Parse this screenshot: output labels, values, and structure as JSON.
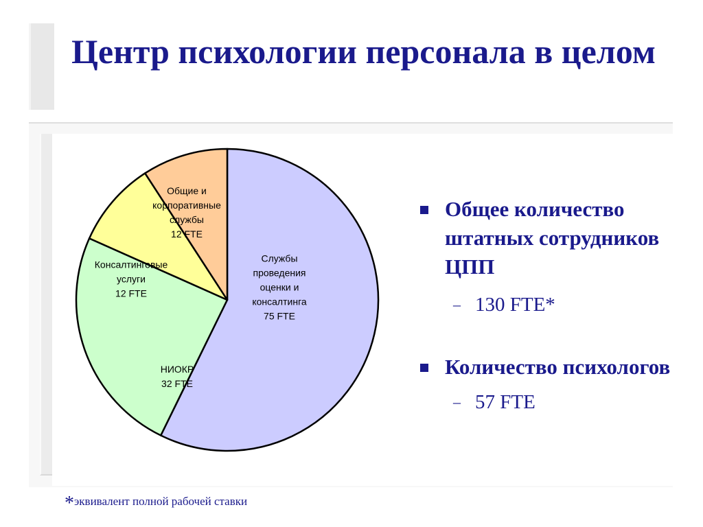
{
  "title": "Центр психологии персонала в целом",
  "chart_data": {
    "type": "pie",
    "slices": [
      {
        "name": "Службы проведения оценки и консалтинга",
        "lines": [
          "Службы",
          "проведения",
          "оценки и",
          "консалтинга",
          "75 FTE"
        ],
        "value": 75,
        "color": "#ccccff"
      },
      {
        "name": "НИОКР",
        "lines": [
          "НИОКР",
          "32 FTE"
        ],
        "value": 32,
        "color": "#ccffcc"
      },
      {
        "name": "Консалтинговые услуги",
        "lines": [
          "Консалтинговые",
          "услуги",
          "12 FTE"
        ],
        "value": 12,
        "color": "#ffff99"
      },
      {
        "name": "Общие и корпоративные службы",
        "lines": [
          "Общие и",
          "корпоративные",
          "службы",
          "12 FTE"
        ],
        "value": 12,
        "color": "#ffcc99"
      }
    ],
    "start_angle_deg": 0,
    "direction": "clockwise"
  },
  "bullets": [
    {
      "text": "Общее количество штатных сотрудников ЦПП",
      "sub": "130 FTE*"
    },
    {
      "text": "Количество психологов",
      "sub": "57 FTE"
    }
  ],
  "footnote": {
    "star": "*",
    "text": "эквивалент полной рабочей ставки"
  },
  "colors": {
    "accent": "#1a1a8c"
  }
}
